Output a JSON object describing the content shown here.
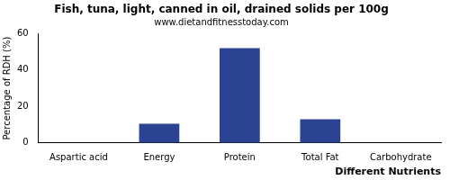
{
  "chart_data": {
    "type": "bar",
    "title": "Fish, tuna, light, canned in oil, drained solids per 100g",
    "subtitle": "www.dietandfitnesstoday.com",
    "x_label": "Different Nutrients",
    "y_label": "Percentage of RDH (%)",
    "categories": [
      "Aspartic acid",
      "Energy",
      "Protein",
      "Total Fat",
      "Carbohydrate"
    ],
    "values": [
      0,
      10.5,
      52,
      13,
      0
    ],
    "color": "#2b4392",
    "ylim": [
      0,
      60
    ],
    "yticks": [
      0,
      20,
      40,
      60
    ],
    "grid": false
  }
}
